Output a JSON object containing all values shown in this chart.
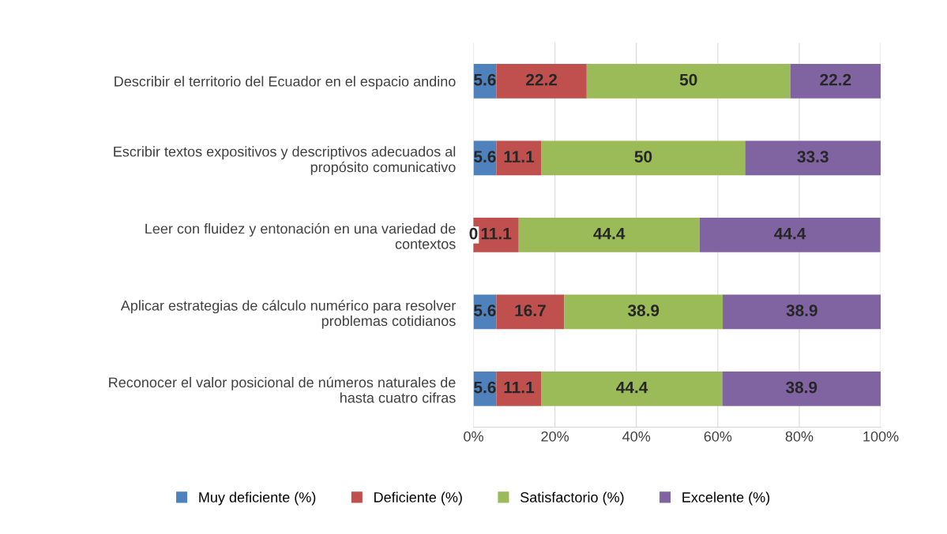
{
  "chart_data": {
    "type": "bar",
    "orientation": "horizontal",
    "stacked": true,
    "categories": [
      "Describir el territorio del Ecuador en el espacio andino",
      "Escribir textos expositivos y descriptivos adecuados al\npropósito comunicativo",
      "Leer con fluidez y entonación en una variedad de\ncontextos",
      "Aplicar estrategias de cálculo numérico para resolver\nproblemas cotidianos",
      "Reconocer el valor posicional de números naturales de\nhasta cuatro cifras"
    ],
    "series": [
      {
        "name": "Muy deficiente (%)",
        "color": "#4f81bd",
        "values": [
          5.6,
          5.6,
          0,
          5.6,
          5.6
        ]
      },
      {
        "name": "Deficiente (%)",
        "color": "#c0504d",
        "values": [
          22.2,
          11.1,
          11.1,
          16.7,
          11.1
        ]
      },
      {
        "name": "Satisfactorio (%)",
        "color": "#9bbb59",
        "values": [
          50,
          50,
          44.4,
          38.9,
          44.4
        ]
      },
      {
        "name": "Excelente (%)",
        "color": "#8064a2",
        "values": [
          22.2,
          33.3,
          44.4,
          38.9,
          38.9
        ]
      }
    ],
    "xlim": [
      0,
      100
    ],
    "xticks": [
      {
        "value": 0,
        "label": "0%"
      },
      {
        "value": 20,
        "label": "20%"
      },
      {
        "value": 40,
        "label": "40%"
      },
      {
        "value": 60,
        "label": "60%"
      },
      {
        "value": 80,
        "label": "80%"
      },
      {
        "value": 100,
        "label": "100%"
      }
    ],
    "grid": "x",
    "legend": "bottom",
    "data_labels": true
  }
}
